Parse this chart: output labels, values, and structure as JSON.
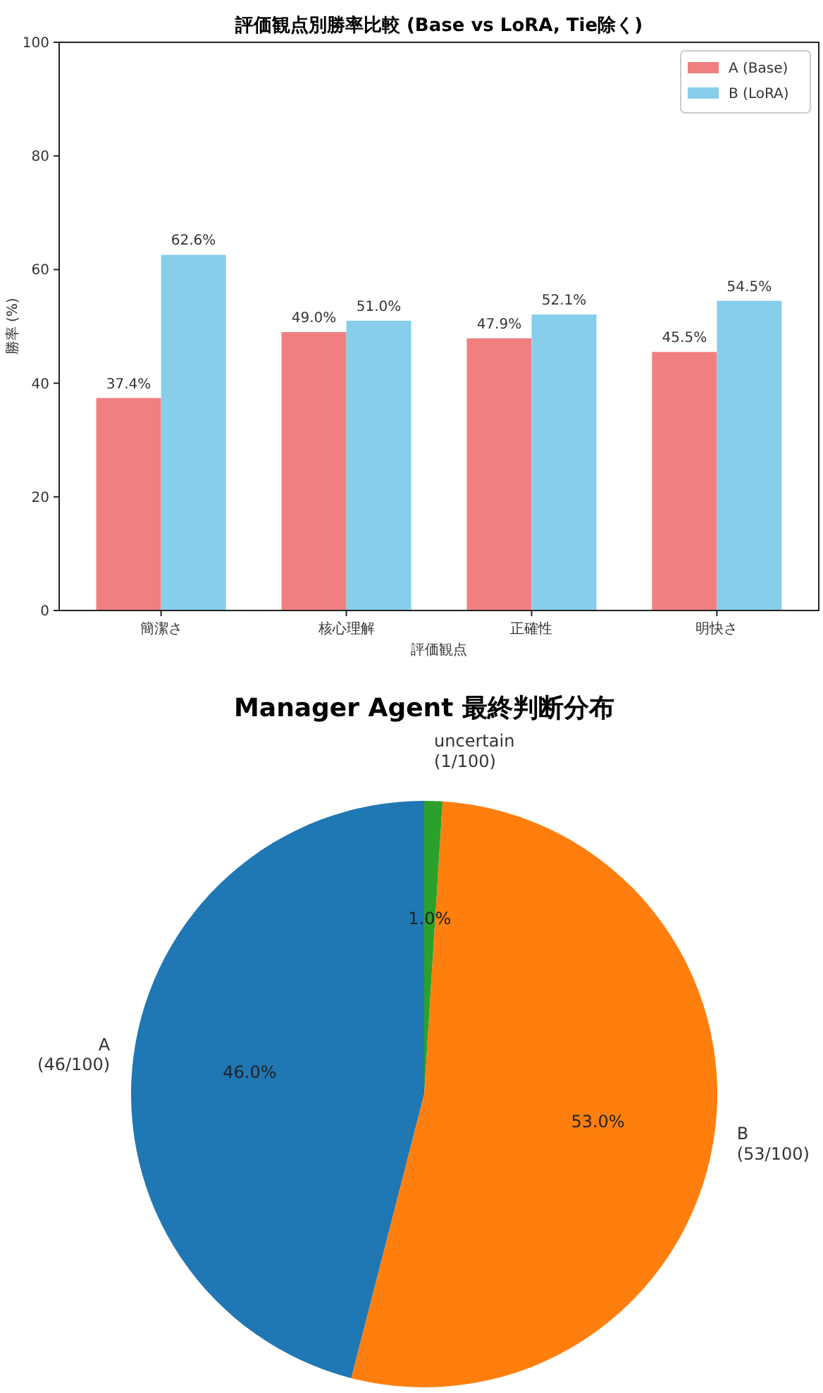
{
  "chart_data": [
    {
      "type": "bar",
      "title": "評価観点別勝率比較 (Base vs LoRA, Tie除く)",
      "xlabel": "評価観点",
      "ylabel": "勝率 (%)",
      "categories": [
        "簡潔さ",
        "核心理解",
        "正確性",
        "明快さ"
      ],
      "series": [
        {
          "name": "A (Base)",
          "color": "#f08080",
          "values": [
            37.4,
            49.0,
            47.9,
            45.5
          ],
          "value_labels": [
            "37.4%",
            "49.0%",
            "47.9%",
            "45.5%"
          ]
        },
        {
          "name": "B (LoRA)",
          "color": "#87ceeb",
          "values": [
            62.6,
            51.0,
            52.1,
            54.5
          ],
          "value_labels": [
            "62.6%",
            "51.0%",
            "52.1%",
            "54.5%"
          ]
        }
      ],
      "ylim": [
        0,
        100
      ],
      "yticks": [
        0,
        20,
        40,
        60,
        80,
        100
      ],
      "grid": false,
      "legend": "top right"
    },
    {
      "type": "pie",
      "title": "Manager Agent 最終判断分布",
      "categories": [
        "A\n(46/100)",
        "B\n(53/100)",
        "uncertain\n(1/100)"
      ],
      "values": [
        46,
        53,
        1
      ],
      "colors": [
        "#1f77b4",
        "#ff7f0e",
        "#2ca02c"
      ],
      "value_labels": [
        "46.0%",
        "53.0%",
        "1.0%"
      ]
    }
  ]
}
